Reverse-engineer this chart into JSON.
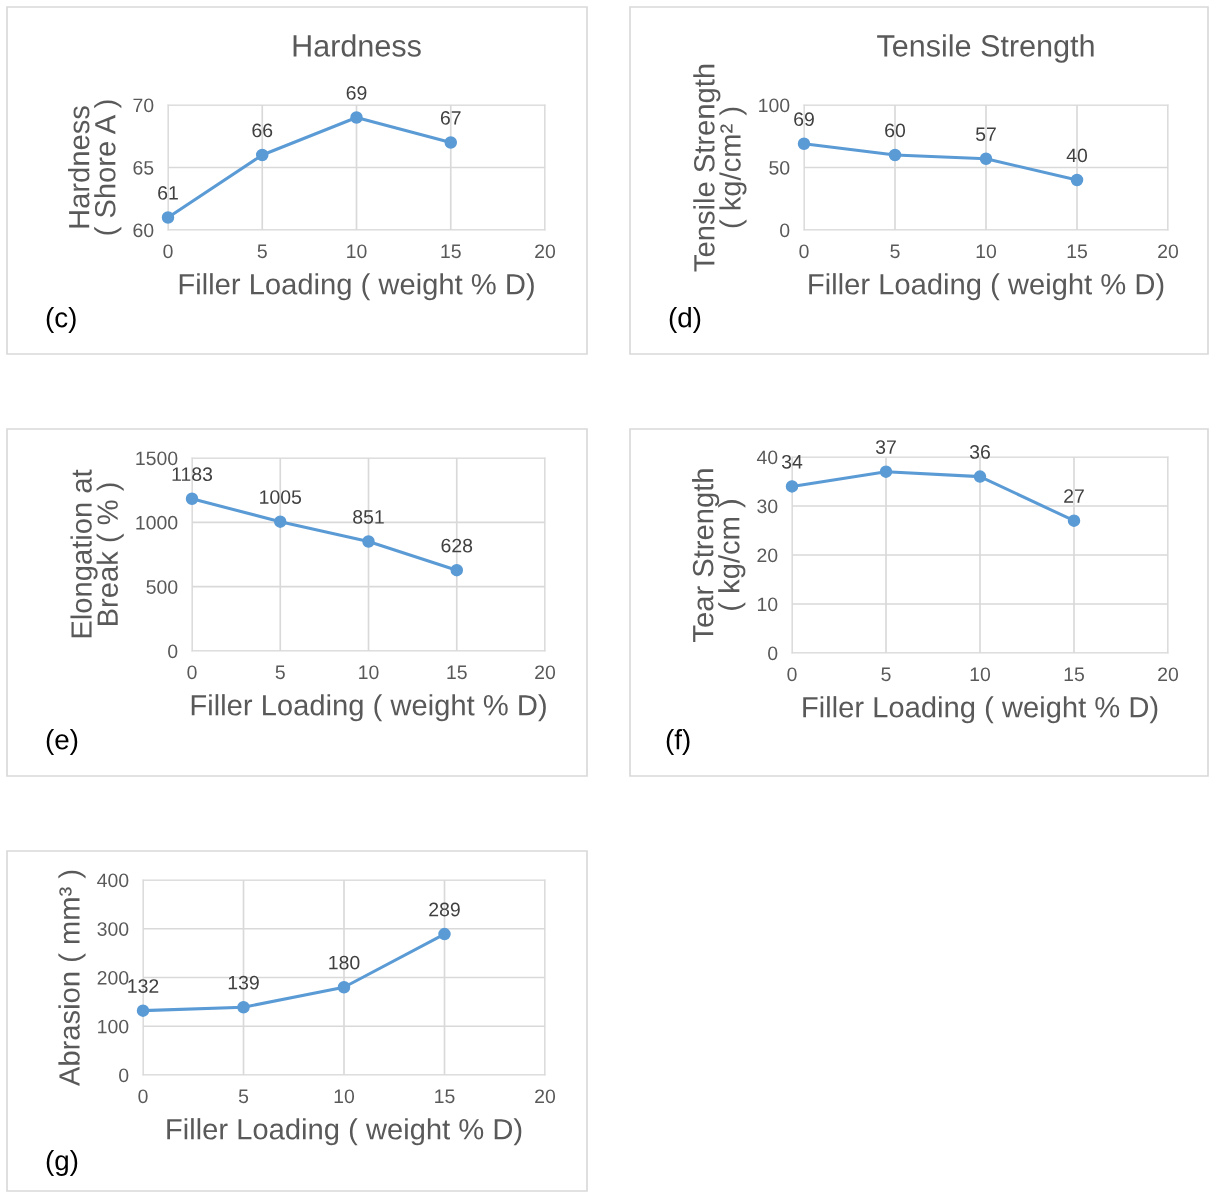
{
  "chart_data": [
    {
      "type": "line",
      "title": "Hardness",
      "xlabel": "Filler Loading ( weight % D)",
      "ylabel": "Hardness\n( Shore A )",
      "x": [
        0,
        5,
        10,
        15
      ],
      "series": [
        {
          "color": "#5b9bd5",
          "values": [
            61,
            66,
            69,
            67
          ]
        }
      ],
      "xlim": [
        0,
        20
      ],
      "xticks": [
        0,
        5,
        10,
        15,
        20
      ],
      "ylim": [
        60,
        70
      ],
      "yticks": [
        60,
        65,
        70
      ],
      "grid": true,
      "marker": "circle",
      "line_style": "solid",
      "data_labels": true,
      "annotations": [
        "(c)"
      ]
    },
    {
      "type": "line",
      "title": "Tensile Strength",
      "xlabel": "Filler Loading ( weight % D)",
      "ylabel": "Tensile Strength\n( kg/cm² )",
      "x": [
        0,
        5,
        10,
        15
      ],
      "series": [
        {
          "color": "#5b9bd5",
          "values": [
            69,
            60,
            57,
            40
          ]
        }
      ],
      "xlim": [
        0,
        20
      ],
      "xticks": [
        0,
        5,
        10,
        15,
        20
      ],
      "ylim": [
        0,
        100
      ],
      "yticks": [
        0,
        50,
        100
      ],
      "grid": true,
      "marker": "circle",
      "line_style": "solid",
      "data_labels": true,
      "annotations": [
        "(d)"
      ]
    },
    {
      "type": "line",
      "xlabel": "Filler Loading ( weight % D)",
      "ylabel": "Elongation at\nBreak ( % )",
      "x": [
        0,
        5,
        10,
        15
      ],
      "series": [
        {
          "color": "#5b9bd5",
          "values": [
            1183,
            1005,
            851,
            628
          ]
        }
      ],
      "xlim": [
        0,
        20
      ],
      "xticks": [
        0,
        5,
        10,
        15,
        20
      ],
      "ylim": [
        0,
        1500
      ],
      "yticks": [
        0,
        500,
        1000,
        1500
      ],
      "grid": true,
      "marker": "circle",
      "line_style": "solid",
      "data_labels": true,
      "annotations": [
        "(e)"
      ]
    },
    {
      "type": "line",
      "xlabel": "Filler Loading ( weight % D)",
      "ylabel": "Tear Strength\n( kg/cm )",
      "x": [
        0,
        5,
        10,
        15
      ],
      "series": [
        {
          "color": "#5b9bd5",
          "values": [
            34,
            37,
            36,
            27
          ]
        }
      ],
      "xlim": [
        0,
        20
      ],
      "xticks": [
        0,
        5,
        10,
        15,
        20
      ],
      "ylim": [
        0,
        40
      ],
      "yticks": [
        0,
        10,
        20,
        30,
        40
      ],
      "grid": true,
      "marker": "circle",
      "line_style": "solid",
      "data_labels": true,
      "annotations": [
        "(f)"
      ]
    },
    {
      "type": "line",
      "xlabel": "Filler Loading ( weight % D)",
      "ylabel": "Abrasion ( mm³ )",
      "x": [
        0,
        5,
        10,
        15
      ],
      "series": [
        {
          "color": "#5b9bd5",
          "values": [
            132,
            139,
            180,
            289
          ]
        }
      ],
      "xlim": [
        0,
        20
      ],
      "xticks": [
        0,
        5,
        10,
        15,
        20
      ],
      "ylim": [
        0,
        400
      ],
      "yticks": [
        0,
        100,
        200,
        300,
        400
      ],
      "grid": true,
      "marker": "circle",
      "line_style": "solid",
      "data_labels": true,
      "annotations": [
        "(g)"
      ]
    }
  ]
}
